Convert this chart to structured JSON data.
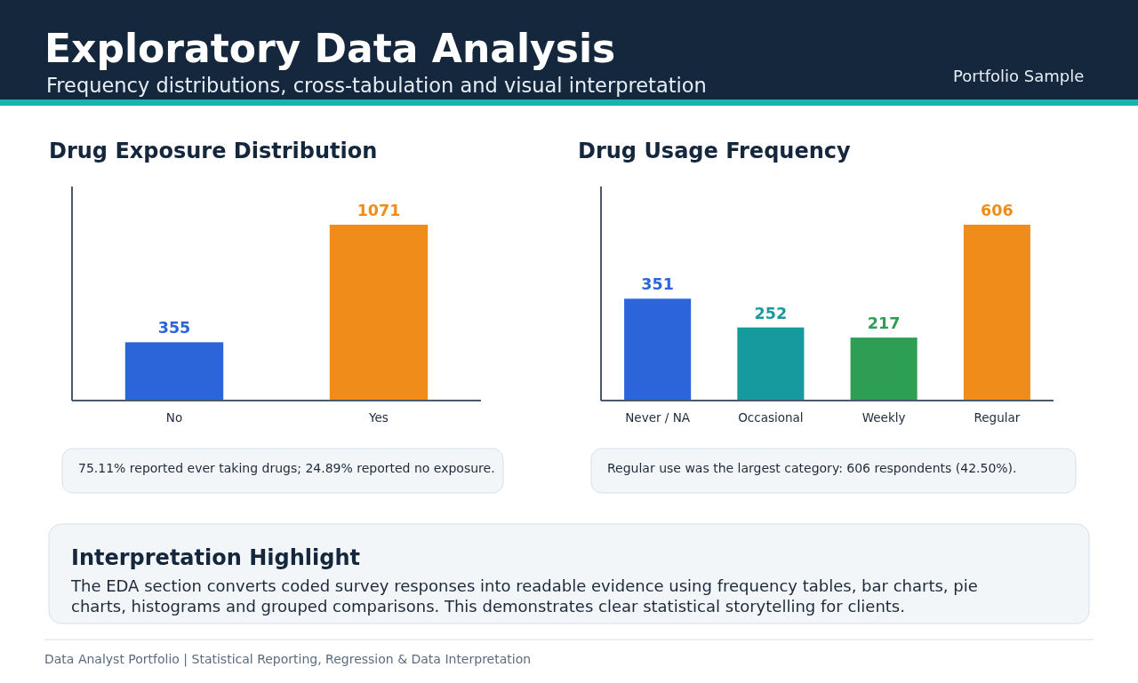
{
  "chart_data": [
    {
      "type": "other",
      "title": "Exploratory Data Analysis",
      "subtitle": "Frequency distributions, cross-tabulation and visual interpretation",
      "annotations": [
        "Portfolio Sample"
      ]
    },
    {
      "type": "bar",
      "title": "Drug Exposure Distribution",
      "categories": [
        "No",
        "Yes"
      ],
      "values": [
        355,
        1071
      ],
      "colors": [
        "#2b65d9",
        "#f08c1a"
      ],
      "data_labels": true,
      "annotations": [
        "75.11% reported ever taking drugs; 24.89% reported no exposure."
      ]
    },
    {
      "type": "bar",
      "title": "Drug Usage Frequency",
      "categories": [
        "Never / NA",
        "Occasional",
        "Weekly",
        "Regular"
      ],
      "values": [
        351,
        252,
        217,
        606
      ],
      "colors": [
        "#2b65d9",
        "#169a9e",
        "#2f9e55",
        "#f08c1a"
      ],
      "data_labels": true,
      "annotations": [
        "Regular use was the largest category: 606 respondents (42.50%)."
      ]
    },
    {
      "type": "other",
      "title": "Interpretation Highlight",
      "annotations": [
        "The EDA section converts coded survey responses into readable evidence using frequency tables, bar charts, pie charts, histograms and grouped comparisons. This demonstrates clear statistical storytelling for clients.",
        "Data Analyst Portfolio | Statistical Reporting, Regression & Data Interpretation"
      ]
    }
  ]
}
